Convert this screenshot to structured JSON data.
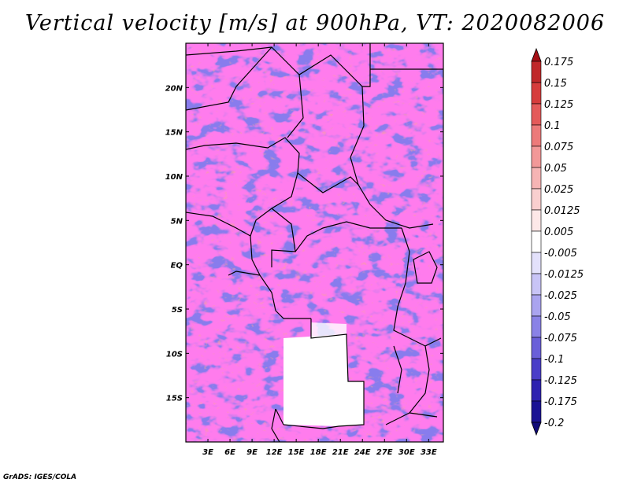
{
  "chart_data": {
    "type": "heatmap",
    "title": "Vertical velocity [m/s] at 900hPa, VT: 2020082006",
    "variable": "Vertical velocity",
    "units": "m/s",
    "level": "900hPa",
    "valid_time": "2020082006",
    "x_range": [
      0,
      35
    ],
    "y_range": [
      -20,
      25
    ],
    "x_ticks": [
      3,
      6,
      9,
      12,
      15,
      18,
      21,
      24,
      27,
      30,
      33
    ],
    "x_tick_labels": [
      "3E",
      "6E",
      "9E",
      "12E",
      "15E",
      "18E",
      "21E",
      "24E",
      "27E",
      "30E",
      "33E"
    ],
    "y_ticks": [
      20,
      15,
      10,
      5,
      0,
      -5,
      -10,
      -15
    ],
    "y_tick_labels": [
      "20N",
      "15N",
      "10N",
      "5N",
      "EQ",
      "5S",
      "10S",
      "15S"
    ],
    "colorbar": {
      "levels": [
        "0.175",
        "0.15",
        "0.125",
        "0.1",
        "0.075",
        "0.05",
        "0.025",
        "0.0125",
        "0.005",
        "-0.005",
        "-0.0125",
        "-0.025",
        "-0.05",
        "-0.075",
        "-0.1",
        "-0.125",
        "-0.175",
        "-0.2"
      ],
      "colors": [
        "#a50f15",
        "#c0282a",
        "#d63c3c",
        "#e45a5a",
        "#ec7a7a",
        "#f29898",
        "#f6b4b4",
        "#f9cfcf",
        "#fde8e8",
        "#ffffff",
        "#e3e1fb",
        "#c8c4f6",
        "#aaa4ef",
        "#8a82e6",
        "#6a5fd9",
        "#4a3ec8",
        "#2e22b0",
        "#1a1294",
        "#100a78"
      ]
    }
  },
  "footer": {
    "credit": "GrADS: IGES/COLA"
  }
}
